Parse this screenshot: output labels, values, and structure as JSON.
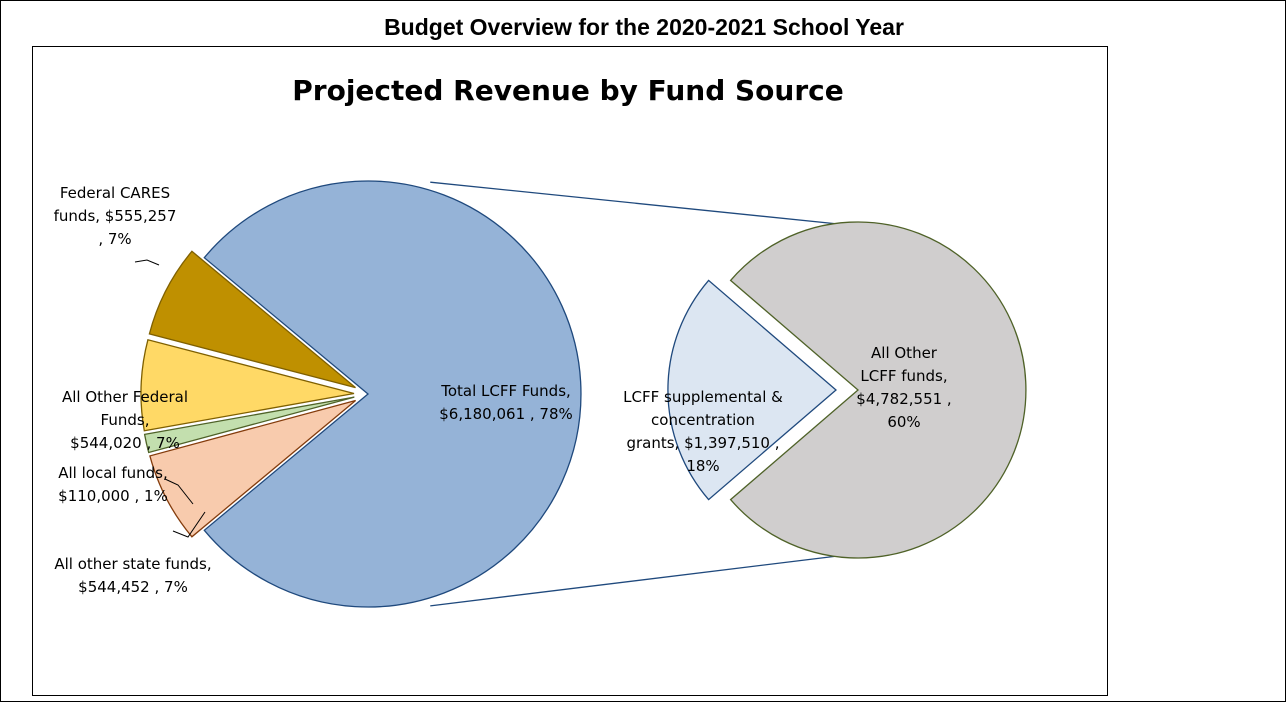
{
  "page": {
    "header_title": "Budget Overview for the 2020-2021 School Year"
  },
  "chart_data": {
    "type": "pie",
    "subtype": "pie-of-pie",
    "title": "Projected Revenue by Fund Source",
    "main_pie": {
      "slices": [
        {
          "name": "Total LCFF Funds",
          "value": 6180061,
          "percent": 78,
          "color": "#95b3d7",
          "stroke": "#1f497d",
          "label_lines": [
            "Total LCFF Funds,",
            "$6,180,061 , 78%"
          ]
        },
        {
          "name": "All other state funds",
          "value": 544452,
          "percent": 7,
          "color": "#f8cbad",
          "stroke": "#843c0c",
          "label_lines": [
            "All other state funds,",
            "$544,452 , 7%"
          ]
        },
        {
          "name": "All local funds",
          "value": 110000,
          "percent": 1,
          "color": "#c3dfae",
          "stroke": "#4f6228",
          "label_lines": [
            "All local funds,",
            "$110,000 , 1%"
          ]
        },
        {
          "name": "All Other Federal Funds",
          "value": 544020,
          "percent": 7,
          "color": "#ffd966",
          "stroke": "#7f6000",
          "label_lines": [
            "All Other Federal",
            "Funds,",
            "$544,020 , 7%"
          ]
        },
        {
          "name": "Federal CARES funds",
          "value": 555257,
          "percent": 7,
          "color": "#bf9000",
          "stroke": "#7f6000",
          "label_lines": [
            "Federal CARES",
            "funds,  $555,257",
            ", 7%"
          ]
        }
      ]
    },
    "secondary_pie": {
      "parent": "Total LCFF Funds",
      "slices": [
        {
          "name": "All Other LCFF funds",
          "value": 4782551,
          "percent": 60,
          "color": "#d0cece",
          "stroke": "#4f6228",
          "label_lines": [
            "All Other",
            "LCFF funds,",
            "$4,782,551 ,",
            "60%"
          ]
        },
        {
          "name": "LCFF supplemental & concentration grants",
          "value": 1397510,
          "percent": 18,
          "color": "#dce6f2",
          "stroke": "#1f497d",
          "label_lines": [
            "LCFF supplemental &",
            "concentration",
            "grants,  $1,397,510 ,",
            "18%"
          ]
        }
      ]
    },
    "legend": "none"
  }
}
